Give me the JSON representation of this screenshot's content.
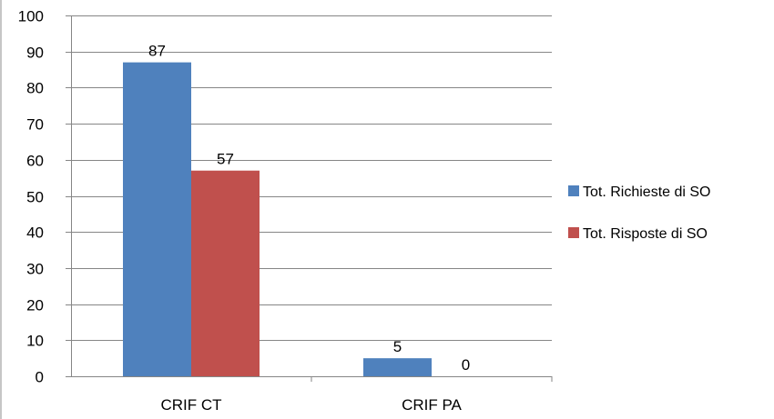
{
  "chart_data": {
    "type": "bar",
    "categories": [
      "CRIF CT",
      "CRIF PA"
    ],
    "series": [
      {
        "name": "Tot. Richieste di SO",
        "values": [
          87,
          5
        ],
        "color": "#4f81bd"
      },
      {
        "name": "Tot. Risposte di SO",
        "values": [
          57,
          0
        ],
        "color": "#c0504d"
      }
    ],
    "ylim": [
      0,
      100
    ],
    "yticks": [
      0,
      10,
      20,
      30,
      40,
      50,
      60,
      70,
      80,
      90,
      100
    ],
    "grid": true,
    "data_labels": true,
    "legend_position": "right",
    "title": "",
    "xlabel": "",
    "ylabel": ""
  }
}
